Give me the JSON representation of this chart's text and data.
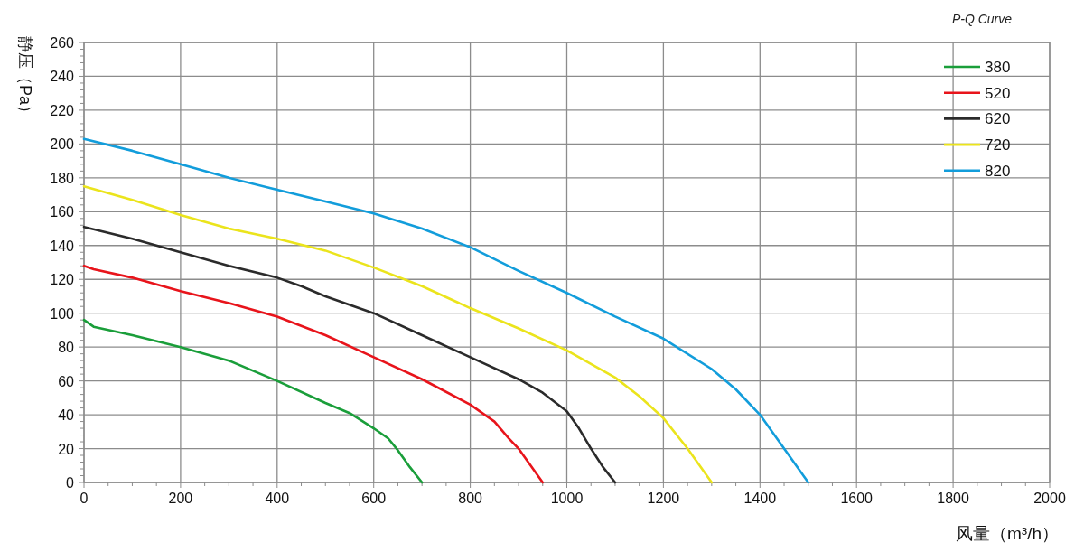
{
  "chart_data": {
    "type": "line",
    "title": "P-Q Curve",
    "xlabel": "风量（m³/h）",
    "ylabel": "静压（Pa）",
    "xlim": [
      0,
      2000
    ],
    "ylim": [
      0,
      260
    ],
    "xticks": [
      0,
      {
        "value": 50,
        "label": null
      },
      {
        "value": 100,
        "label": null
      },
      {
        "value": 150,
        "label": null
      },
      200,
      {
        "value": 250,
        "label": null
      },
      {
        "value": 300,
        "label": null
      },
      {
        "value": 350,
        "label": null
      },
      400,
      {
        "value": 450,
        "label": null
      },
      {
        "value": 500,
        "label": null
      },
      {
        "value": 550,
        "label": null
      },
      600,
      {
        "value": 650,
        "label": null
      },
      {
        "value": 700,
        "label": null
      },
      {
        "value": 750,
        "label": null
      },
      800,
      {
        "value": 850,
        "label": null
      },
      {
        "value": 900,
        "label": null
      },
      {
        "value": 950,
        "label": null
      },
      1000,
      {
        "value": 1050,
        "label": null
      },
      {
        "value": 1100,
        "label": null
      },
      {
        "value": 1150,
        "label": null
      },
      1200,
      {
        "value": 1250,
        "label": null
      },
      {
        "value": 1300,
        "label": null
      },
      {
        "value": 1350,
        "label": null
      },
      1400,
      {
        "value": 1450,
        "label": null
      },
      {
        "value": 1500,
        "label": null
      },
      {
        "value": 1550,
        "label": null
      },
      1600,
      {
        "value": 1650,
        "label": null
      },
      {
        "value": 1700,
        "label": null
      },
      {
        "value": 1750,
        "label": null
      },
      1800,
      {
        "value": 1850,
        "label": null
      },
      {
        "value": 1900,
        "label": null
      },
      {
        "value": 1950,
        "label": null
      },
      2000
    ],
    "yticks": [
      0,
      {
        "value": 4,
        "label": null
      },
      {
        "value": 8,
        "label": null
      },
      {
        "value": 12,
        "label": null
      },
      {
        "value": 16,
        "label": null
      },
      20,
      {
        "value": 24,
        "label": null
      },
      {
        "value": 28,
        "label": null
      },
      {
        "value": 32,
        "label": null
      },
      {
        "value": 36,
        "label": null
      },
      40,
      {
        "value": 44,
        "label": null
      },
      {
        "value": 48,
        "label": null
      },
      {
        "value": 52,
        "label": null
      },
      {
        "value": 56,
        "label": null
      },
      60,
      {
        "value": 64,
        "label": null
      },
      {
        "value": 68,
        "label": null
      },
      {
        "value": 72,
        "label": null
      },
      {
        "value": 76,
        "label": null
      },
      80,
      {
        "value": 84,
        "label": null
      },
      {
        "value": 88,
        "label": null
      },
      {
        "value": 92,
        "label": null
      },
      {
        "value": 96,
        "label": null
      },
      100,
      {
        "value": 104,
        "label": null
      },
      {
        "value": 108,
        "label": null
      },
      {
        "value": 112,
        "label": null
      },
      {
        "value": 116,
        "label": null
      },
      120,
      {
        "value": 124,
        "label": null
      },
      {
        "value": 128,
        "label": null
      },
      {
        "value": 132,
        "label": null
      },
      {
        "value": 136,
        "label": null
      },
      140,
      {
        "value": 144,
        "label": null
      },
      {
        "value": 148,
        "label": null
      },
      {
        "value": 152,
        "label": null
      },
      {
        "value": 156,
        "label": null
      },
      160,
      {
        "value": 164,
        "label": null
      },
      {
        "value": 168,
        "label": null
      },
      {
        "value": 172,
        "label": null
      },
      {
        "value": 176,
        "label": null
      },
      180,
      {
        "value": 184,
        "label": null
      },
      {
        "value": 188,
        "label": null
      },
      {
        "value": 192,
        "label": null
      },
      {
        "value": 196,
        "label": null
      },
      200,
      {
        "value": 204,
        "label": null
      },
      {
        "value": 208,
        "label": null
      },
      {
        "value": 212,
        "label": null
      },
      {
        "value": 216,
        "label": null
      },
      220,
      {
        "value": 224,
        "label": null
      },
      {
        "value": 228,
        "label": null
      },
      {
        "value": 232,
        "label": null
      },
      {
        "value": 236,
        "label": null
      },
      240,
      {
        "value": 244,
        "label": null
      },
      {
        "value": 248,
        "label": null
      },
      {
        "value": 252,
        "label": null
      },
      {
        "value": 256,
        "label": null
      },
      260
    ],
    "grid": true,
    "legend": "top right",
    "marker": "none",
    "line_style": "solid",
    "series": [
      {
        "name": "380",
        "color": "#1a9e3a",
        "x": [
          0,
          20,
          100,
          200,
          300,
          400,
          500,
          550,
          600,
          630,
          650,
          675,
          700
        ],
        "values": [
          96,
          92,
          87,
          80,
          72,
          60,
          47,
          41,
          32,
          26,
          19,
          9,
          0
        ]
      },
      {
        "name": "520",
        "color": "#e8141b",
        "x": [
          0,
          20,
          100,
          200,
          300,
          400,
          500,
          600,
          700,
          800,
          850,
          880,
          900,
          925,
          950
        ],
        "values": [
          128,
          126,
          121,
          113,
          106,
          98,
          87,
          74,
          61,
          46,
          36,
          26,
          20,
          10,
          0
        ]
      },
      {
        "name": "620",
        "color": "#2b2b2b",
        "x": [
          0,
          100,
          200,
          300,
          400,
          450,
          500,
          600,
          700,
          800,
          900,
          950,
          1000,
          1025,
          1050,
          1075,
          1100
        ],
        "values": [
          151,
          144,
          136,
          128,
          121,
          116,
          110,
          100,
          87,
          74,
          61,
          53,
          42,
          32,
          20,
          9,
          0
        ]
      },
      {
        "name": "720",
        "color": "#ebe41c",
        "x": [
          0,
          100,
          200,
          300,
          400,
          500,
          600,
          700,
          800,
          900,
          1000,
          1100,
          1150,
          1200,
          1250,
          1300
        ],
        "values": [
          175,
          167,
          158,
          150,
          144,
          137,
          127,
          116,
          103,
          91,
          78,
          62,
          51,
          38,
          20,
          0
        ]
      },
      {
        "name": "820",
        "color": "#129ddb",
        "x": [
          0,
          100,
          200,
          300,
          400,
          500,
          600,
          700,
          800,
          900,
          1000,
          1100,
          1200,
          1300,
          1350,
          1400,
          1450,
          1500
        ],
        "values": [
          203,
          196,
          188,
          180,
          173,
          166,
          159,
          150,
          139,
          125,
          112,
          98,
          85,
          67,
          55,
          40,
          20,
          0
        ]
      }
    ]
  }
}
